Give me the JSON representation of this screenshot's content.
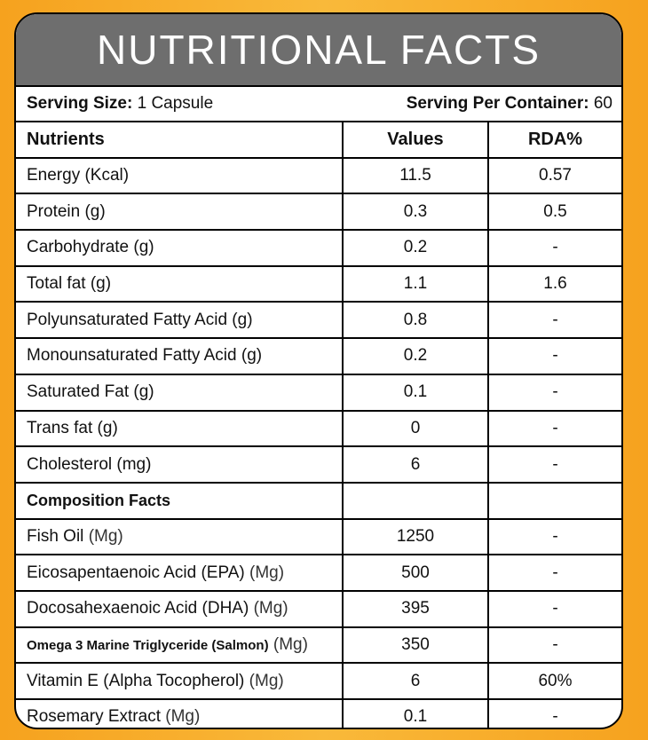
{
  "title": "NUTRITIONAL FACTS",
  "serving": {
    "size_label": "Serving Size:",
    "size_value": "1 Capsule",
    "per_container_label": "Serving Per Container:",
    "per_container_value": "60"
  },
  "table": {
    "headers": [
      "Nutrients",
      "Values",
      "RDA%"
    ],
    "rows": [
      {
        "name": "Energy (Kcal)",
        "value": "11.5",
        "rda": "0.57"
      },
      {
        "name": "Protein (g)",
        "value": "0.3",
        "rda": "0.5"
      },
      {
        "name": "Carbohydrate (g)",
        "value": "0.2",
        "rda": "-"
      },
      {
        "name": "Total fat (g)",
        "value": "1.1",
        "rda": "1.6"
      },
      {
        "name": "Polyunsaturated Fatty Acid (g)",
        "value": "0.8",
        "rda": "-"
      },
      {
        "name": "Monounsaturated Fatty Acid (g)",
        "value": "0.2",
        "rda": "-"
      },
      {
        "name": "Saturated Fat (g)",
        "value": "0.1",
        "rda": "-"
      },
      {
        "name": "Trans fat (g)",
        "value": "0",
        "rda": "-"
      },
      {
        "name": "Cholesterol (mg)",
        "value": "6",
        "rda": "-"
      }
    ],
    "section_label": "Composition Facts",
    "composition": [
      {
        "name": "Fish Oil",
        "unit": "(Mg)",
        "value": "1250",
        "rda": "-"
      },
      {
        "name": "Eicosapentaenoic Acid (EPA)",
        "unit": "(Mg)",
        "value": "500",
        "rda": "-"
      },
      {
        "name": "Docosahexaenoic Acid (DHA)",
        "unit": "(Mg)",
        "value": "395",
        "rda": "-"
      },
      {
        "name": "Omega 3 Marine Triglyceride (Salmon)",
        "unit": "(Mg)",
        "value": "350",
        "rda": "-"
      },
      {
        "name": "Vitamin E (Alpha Tocopherol)",
        "unit": "(Mg)",
        "value": "6",
        "rda": "60%"
      },
      {
        "name": "Rosemary Extract",
        "unit": "(Mg)",
        "value": "0.1",
        "rda": "-"
      }
    ]
  },
  "colors": {
    "background": "#f6a21e",
    "header": "#6e6e6e",
    "panel": "#ffffff"
  }
}
